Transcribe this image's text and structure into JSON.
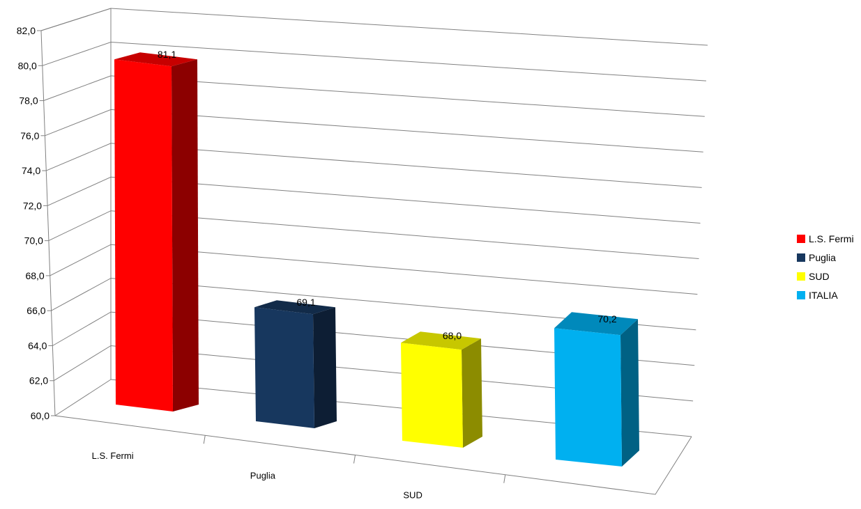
{
  "chart_data": {
    "type": "bar",
    "title": "",
    "xlabel": "",
    "ylabel": "",
    "categories": [
      "L.S. Fermi",
      "Puglia",
      "SUD",
      "ITALIA"
    ],
    "values": [
      81.1,
      69.1,
      68.0,
      70.2
    ],
    "value_labels": [
      "81,1",
      "69,1",
      "68,0",
      "70,2"
    ],
    "colors": [
      "#ff0000",
      "#17375e",
      "#ffff00",
      "#00b0f0"
    ],
    "ylim": [
      60,
      82
    ],
    "yticks": [
      "60,0",
      "62,0",
      "64,0",
      "66,0",
      "68,0",
      "70,0",
      "72,0",
      "74,0",
      "76,0",
      "78,0",
      "80,0",
      "82,0"
    ],
    "grid": true,
    "three_d": true,
    "legend": {
      "placement": "right",
      "entries": [
        {
          "name": "L.S. Fermi",
          "color": "#ff0000"
        },
        {
          "name": "Puglia",
          "color": "#17375e"
        },
        {
          "name": "SUD",
          "color": "#ffff00"
        },
        {
          "name": "ITALIA",
          "color": "#00b0f0"
        }
      ]
    }
  }
}
